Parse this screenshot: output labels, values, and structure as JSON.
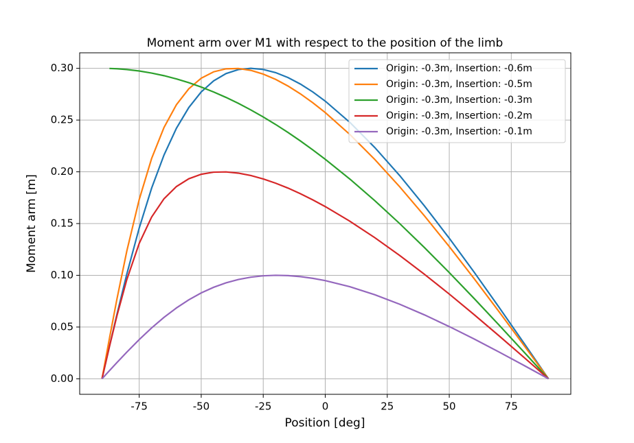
{
  "chart_data": {
    "type": "line",
    "title": "Moment arm over M1 with respect to the position of the limb",
    "xlabel": "Position [deg]",
    "ylabel": "Moment arm [m]",
    "x": [
      -90,
      -87,
      -84,
      -80,
      -75,
      -70,
      -65,
      -60,
      -55,
      -50,
      -45,
      -40,
      -35,
      -30,
      -25,
      -20,
      -15,
      -10,
      -5,
      0,
      10,
      20,
      30,
      40,
      50,
      60,
      70,
      80,
      90
    ],
    "series": [
      {
        "name": "Origin: -0.3m, Insertion: -0.6m",
        "color": "#1f77b4",
        "values": [
          0,
          0.03132,
          0.06204,
          0.10116,
          0.14568,
          0.1842,
          0.21627,
          0.24207,
          0.26215,
          0.27719,
          0.2879,
          0.29492,
          0.29879,
          0.3,
          0.29891,
          0.29585,
          0.29107,
          0.28477,
          0.27714,
          0.26833,
          0.24761,
          0.22343,
          0.1964,
          0.16704,
          0.13581,
          0.10312,
          0.06934,
          0.03485,
          0
        ]
      },
      {
        "name": "Origin: -0.3m, Insertion: -0.5m",
        "color": "#ff7f0e",
        "values": [
          0,
          0.03906,
          0.07684,
          0.1234,
          0.17324,
          0.21286,
          0.2429,
          0.26485,
          0.28025,
          0.29046,
          0.29662,
          0.29953,
          0.29984,
          0.29802,
          0.29442,
          0.2893,
          0.28288,
          0.27531,
          0.26673,
          0.25725,
          0.23591,
          0.21187,
          0.18558,
          0.15741,
          0.12773,
          0.09684,
          0.06505,
          0.03268,
          0
        ]
      },
      {
        "name": "Origin: -0.3m, Insertion: -0.3m",
        "color": "#2ca02c",
        "values": [
          null,
          0.2999,
          0.29959,
          0.29886,
          0.29743,
          0.29544,
          0.29289,
          0.28978,
          0.28612,
          0.28191,
          0.27716,
          0.27189,
          0.2661,
          0.25981,
          0.25302,
          0.24575,
          0.23801,
          0.22981,
          0.22118,
          0.21213,
          0.19284,
          0.17207,
          0.15,
          0.12679,
          0.10261,
          0.07765,
          0.05209,
          0.02615,
          0
        ]
      },
      {
        "name": "Origin: -0.3m, Insertion: -0.2m",
        "color": "#d62728",
        "values": [
          0,
          0.03115,
          0.06074,
          0.09583,
          0.13083,
          0.15629,
          0.17399,
          0.18577,
          0.19329,
          0.19764,
          0.19967,
          0.19989,
          0.19872,
          0.1964,
          0.19311,
          0.18903,
          0.18425,
          0.17884,
          0.17287,
          0.16641,
          0.15214,
          0.13633,
          0.11921,
          0.10099,
          0.08187,
          0.06203,
          0.04165,
          0.02091,
          0
        ]
      },
      {
        "name": "Origin: -0.3m, Insertion: -0.1m",
        "color": "#9467bd",
        "values": [
          0,
          0.00784,
          0.01562,
          0.02576,
          0.03787,
          0.04913,
          0.05936,
          0.06844,
          0.07631,
          0.08296,
          0.08841,
          0.09272,
          0.09596,
          0.0982,
          0.09952,
          0.1,
          0.0997,
          0.09871,
          0.09708,
          0.09487,
          0.08891,
          0.08121,
          0.07206,
          0.06174,
          0.05047,
          0.03848,
          0.02595,
          0.01306,
          0
        ]
      }
    ],
    "xlim": [
      -99,
      99
    ],
    "xticks": [
      -75,
      -50,
      -25,
      0,
      25,
      50,
      75
    ],
    "ylim": [
      -0.015,
      0.315
    ],
    "yticks": [
      {
        "value": 0,
        "label": "0.00"
      },
      {
        "value": 0.05,
        "label": "0.05"
      },
      {
        "value": 0.1,
        "label": "0.10"
      },
      {
        "value": 0.15,
        "label": "0.15"
      },
      {
        "value": 0.2,
        "label": "0.20"
      },
      {
        "value": 0.25,
        "label": "0.25"
      },
      {
        "value": 0.3,
        "label": "0.30"
      }
    ],
    "grid": true,
    "legend": "upper right"
  }
}
